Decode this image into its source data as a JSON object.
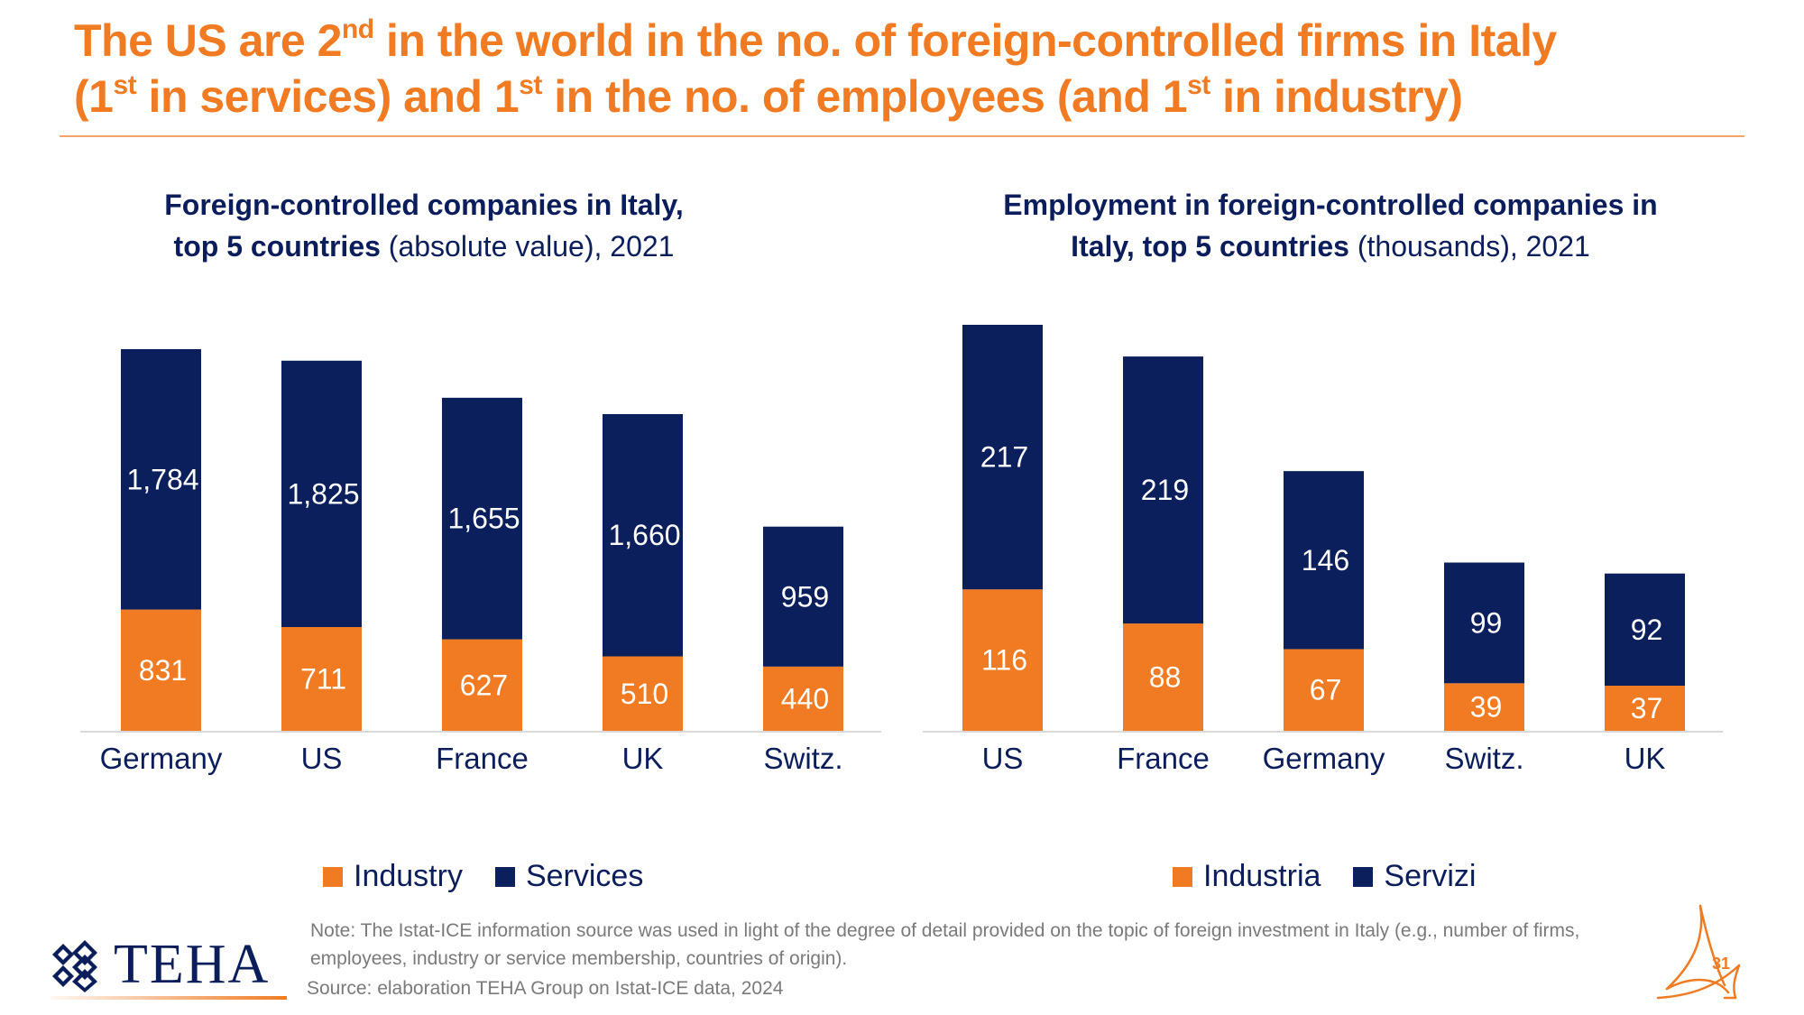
{
  "title": {
    "parts": [
      {
        "t": "The US are 2"
      },
      {
        "sup": "nd"
      },
      {
        "t": " in the world in the no. of foreign-controlled firms in Italy "
      },
      {
        "t": "(1"
      },
      {
        "sup": "st"
      },
      {
        "t": " in services) and 1"
      },
      {
        "sup": "st"
      },
      {
        "t": " in the no. of employees (and 1"
      },
      {
        "sup": "st"
      },
      {
        "t": " in industry)"
      }
    ]
  },
  "colors": {
    "accent": "#F07B22",
    "navy": "#0B1E5B",
    "industry": "#F07B22",
    "services": "#0A1F5C",
    "axis": "#D9D9D9"
  },
  "left_chart": {
    "title_bold_1": "Foreign-controlled companies in Italy,",
    "title_bold_2": "top 5 countries",
    "title_normal_2": " (absolute value), 2021",
    "legend": [
      "Industry",
      "Services"
    ]
  },
  "right_chart": {
    "title_bold_1": "Employment in foreign-controlled companies in",
    "title_bold_2": "Italy, top 5 countries",
    "title_normal_2": " (thousands), 2021",
    "legend": [
      "Industria",
      "Servizi"
    ]
  },
  "chart_data": [
    {
      "type": "bar",
      "stacked": true,
      "title": "Foreign-controlled companies in Italy, top 5 countries (absolute value), 2021",
      "categories": [
        "Germany",
        "US",
        "France",
        "UK",
        "Switz."
      ],
      "series": [
        {
          "name": "Industry",
          "values": [
            831,
            711,
            627,
            510,
            440
          ]
        },
        {
          "name": "Services",
          "values": [
            1784,
            1825,
            1655,
            1660,
            959
          ]
        }
      ],
      "xlabel": "",
      "ylabel": "",
      "ylim": [
        0,
        2615
      ],
      "grid": false,
      "legend_position": "bottom"
    },
    {
      "type": "bar",
      "stacked": true,
      "title": "Employment in foreign-controlled companies in Italy, top 5 countries (thousands), 2021",
      "categories": [
        "US",
        "France",
        "Germany",
        "Switz.",
        "UK"
      ],
      "series": [
        {
          "name": "Industria",
          "values": [
            116,
            88,
            67,
            39,
            37
          ]
        },
        {
          "name": "Servizi",
          "values": [
            217,
            219,
            146,
            99,
            92
          ]
        }
      ],
      "xlabel": "",
      "ylabel": "",
      "ylim": [
        0,
        333
      ],
      "grid": false,
      "legend_position": "bottom"
    }
  ],
  "footer": {
    "note": "Note: The Istat-ICE information source was used in light of the degree of detail provided on the topic of foreign investment in Italy (e.g., number of firms, employees, industry or service membership, countries of origin).",
    "source": "Source: elaboration TEHA Group on Istat-ICE data, 2024",
    "logo_text": "TEHA",
    "page_number": "31"
  }
}
